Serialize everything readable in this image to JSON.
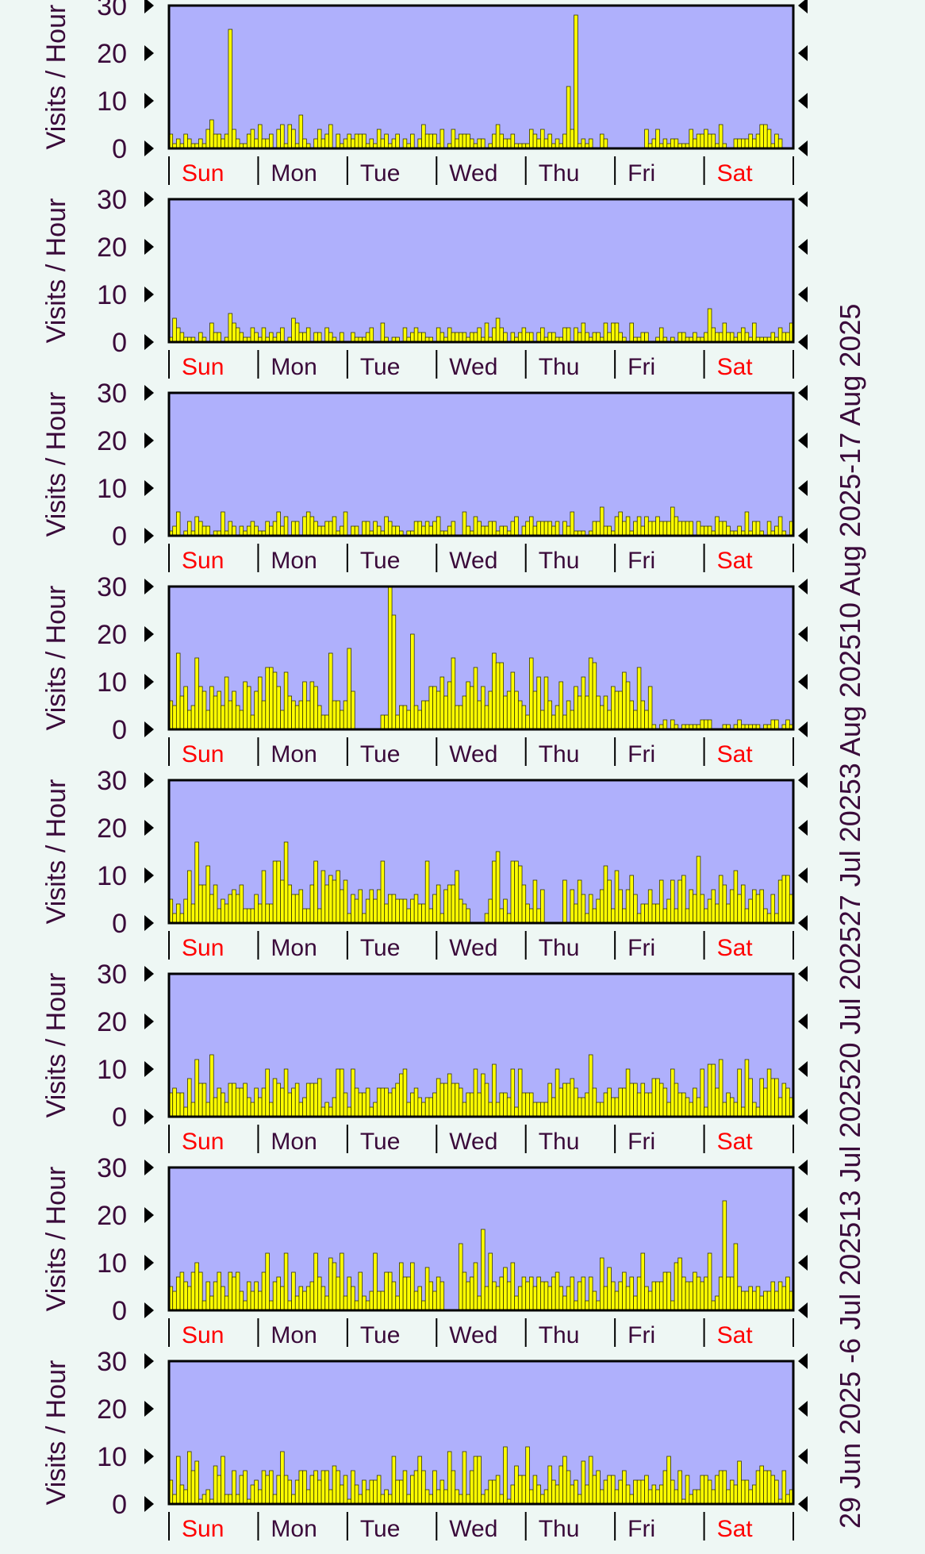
{
  "colors": {
    "background": "#eef7f4",
    "plot_background": "#afb0fc",
    "bar_fill": "#ffff00",
    "bar_stroke": "#333300",
    "weekend_label": "#ff0000",
    "weekday_label": "#3a0a3a",
    "axis_text": "#3a0a3a"
  },
  "chart_data": {
    "type": "bar",
    "ylabel": "Visits / Hour",
    "ylim": [
      0,
      30
    ],
    "yticks": [
      "0",
      "10",
      "20",
      "30"
    ],
    "days": [
      "Sun",
      "Mon",
      "Tue",
      "Wed",
      "Thu",
      "Fri",
      "Sat"
    ],
    "weekend_days": [
      "Sun",
      "Sat"
    ],
    "hours_per_day": 24,
    "weeks": [
      {
        "label": "-17 Aug 2025",
        "spikes": [
          [
            16,
            25
          ],
          [
            11,
            6
          ],
          [
            24,
            5
          ],
          [
            35,
            7
          ],
          [
            40,
            4
          ],
          [
            51,
            3
          ],
          [
            56,
            4
          ],
          [
            78,
            3
          ],
          [
            84,
            2
          ],
          [
            92,
            3
          ],
          [
            107,
            13
          ],
          [
            109,
            28
          ],
          [
            111,
            2
          ],
          [
            130,
            2
          ],
          [
            140,
            4
          ],
          [
            148,
            5
          ],
          [
            161,
            4
          ]
        ],
        "base": 1.2,
        "noise": 1.4,
        "empty_after": 165,
        "empty_ranges": [
          [
            118,
            128
          ]
        ]
      },
      {
        "label": "10 Aug 2025",
        "spikes": [
          [
            11,
            4
          ],
          [
            16,
            6
          ],
          [
            22,
            3
          ],
          [
            30,
            3
          ],
          [
            57,
            4
          ],
          [
            82,
            2
          ],
          [
            88,
            5
          ],
          [
            102,
            2
          ],
          [
            119,
            4
          ],
          [
            124,
            4
          ],
          [
            145,
            7
          ],
          [
            150,
            2
          ]
        ],
        "base": 1.0,
        "noise": 1.4
      },
      {
        "label": "3 Aug 2025",
        "spikes": [
          [
            14,
            5
          ],
          [
            36,
            4
          ],
          [
            44,
            4
          ],
          [
            47,
            5
          ],
          [
            58,
            4
          ],
          [
            72,
            4
          ],
          [
            93,
            4
          ],
          [
            108,
            5
          ],
          [
            120,
            4
          ],
          [
            136,
            4
          ],
          [
            147,
            4
          ],
          [
            155,
            5
          ],
          [
            164,
            4
          ]
        ],
        "base": 1.3,
        "noise": 1.8
      },
      {
        "label": "27 Jul 2025",
        "spikes": [
          [
            7,
            15
          ],
          [
            26,
            13
          ],
          [
            31,
            12
          ],
          [
            43,
            16
          ],
          [
            48,
            17
          ],
          [
            59,
            30
          ],
          [
            60,
            24
          ],
          [
            65,
            20
          ],
          [
            73,
            11
          ],
          [
            89,
            14
          ],
          [
            92,
            12
          ],
          [
            114,
            14
          ]
        ],
        "base": 5.5,
        "noise": 4.0,
        "empty_ranges": [
          [
            50,
            57
          ]
        ],
        "low_after": 130
      },
      {
        "label": "20 Jul 2025",
        "spikes": [
          [
            7,
            17
          ],
          [
            28,
            13
          ],
          [
            31,
            17
          ],
          [
            45,
            11
          ],
          [
            88,
            15
          ],
          [
            92,
            13
          ],
          [
            106,
            9
          ],
          [
            117,
            12
          ],
          [
            124,
            10
          ],
          [
            148,
            10
          ],
          [
            165,
            10
          ]
        ],
        "base": 4.5,
        "noise": 3.5,
        "empty_ranges": [
          [
            81,
            85
          ],
          [
            101,
            108
          ]
        ]
      },
      {
        "label": "13 Jul 2025",
        "spikes": [
          [
            7,
            12
          ],
          [
            11,
            13
          ],
          [
            26,
            10
          ],
          [
            31,
            10
          ],
          [
            46,
            10
          ],
          [
            75,
            9
          ],
          [
            94,
            10
          ],
          [
            104,
            10
          ],
          [
            113,
            13
          ],
          [
            148,
            12
          ],
          [
            155,
            12
          ],
          [
            162,
            8
          ]
        ],
        "base": 4.0,
        "noise": 3.0
      },
      {
        "label": "6 Jul 2025",
        "spikes": [
          [
            6,
            8
          ],
          [
            13,
            8
          ],
          [
            26,
            12
          ],
          [
            31,
            12
          ],
          [
            44,
            10
          ],
          [
            69,
            9
          ],
          [
            78,
            14
          ],
          [
            84,
            17
          ],
          [
            99,
            7
          ],
          [
            113,
            7
          ],
          [
            145,
            12
          ],
          [
            149,
            23
          ],
          [
            152,
            14
          ]
        ],
        "base": 4.0,
        "noise": 3.0,
        "empty_ranges": [
          [
            74,
            78
          ]
        ]
      },
      {
        "label": "29 Jun 2025 - ",
        "spikes": [
          [
            2,
            10
          ],
          [
            12,
            8
          ],
          [
            30,
            11
          ],
          [
            36,
            7
          ],
          [
            49,
            7
          ],
          [
            66,
            7
          ],
          [
            90,
            12
          ],
          [
            105,
            8
          ],
          [
            115,
            7
          ],
          [
            133,
            7
          ],
          [
            148,
            7
          ],
          [
            162,
            6
          ]
        ],
        "base": 3.5,
        "noise": 3.0
      }
    ]
  }
}
